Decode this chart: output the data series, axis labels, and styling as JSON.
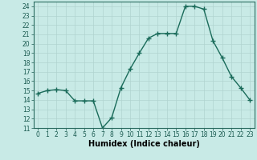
{
  "x": [
    0,
    1,
    2,
    3,
    4,
    5,
    6,
    7,
    8,
    9,
    10,
    11,
    12,
    13,
    14,
    15,
    16,
    17,
    18,
    19,
    20,
    21,
    22,
    23
  ],
  "y": [
    14.7,
    15.0,
    15.1,
    15.0,
    13.9,
    13.9,
    13.9,
    11.0,
    12.1,
    15.3,
    17.3,
    19.0,
    20.6,
    21.1,
    21.1,
    21.1,
    24.0,
    24.0,
    23.7,
    20.3,
    18.5,
    16.5,
    15.3,
    14.0
  ],
  "line_color": "#1a6b5a",
  "marker": "+",
  "marker_size": 4,
  "linewidth": 1.0,
  "bg_color": "#c8eae6",
  "grid_color": "#b0d4d0",
  "xlabel": "Humidex (Indice chaleur)",
  "xlim": [
    -0.5,
    23.5
  ],
  "ylim": [
    11,
    24.5
  ],
  "yticks": [
    11,
    12,
    13,
    14,
    15,
    16,
    17,
    18,
    19,
    20,
    21,
    22,
    23,
    24
  ],
  "xticks": [
    0,
    1,
    2,
    3,
    4,
    5,
    6,
    7,
    8,
    9,
    10,
    11,
    12,
    13,
    14,
    15,
    16,
    17,
    18,
    19,
    20,
    21,
    22,
    23
  ],
  "tick_fontsize": 5.5,
  "xlabel_fontsize": 7.0
}
